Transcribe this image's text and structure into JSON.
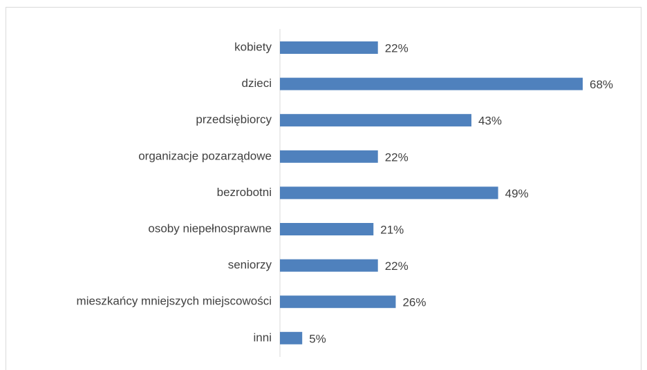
{
  "chart_data": {
    "type": "bar",
    "orientation": "horizontal",
    "categories": [
      "kobiety",
      "dzieci",
      "przedsiębiorcy",
      "organizacje pozarządowe",
      "bezrobotni",
      "osoby niepełnosprawne",
      "seniorzy",
      "mieszkańcy mniejszych miejscowości",
      "inni"
    ],
    "values": [
      22,
      68,
      43,
      22,
      49,
      21,
      22,
      26,
      5
    ],
    "value_labels": [
      "22%",
      "68%",
      "43%",
      "22%",
      "49%",
      "21%",
      "22%",
      "26%",
      "5%"
    ],
    "color": "#4f81bd"
  }
}
